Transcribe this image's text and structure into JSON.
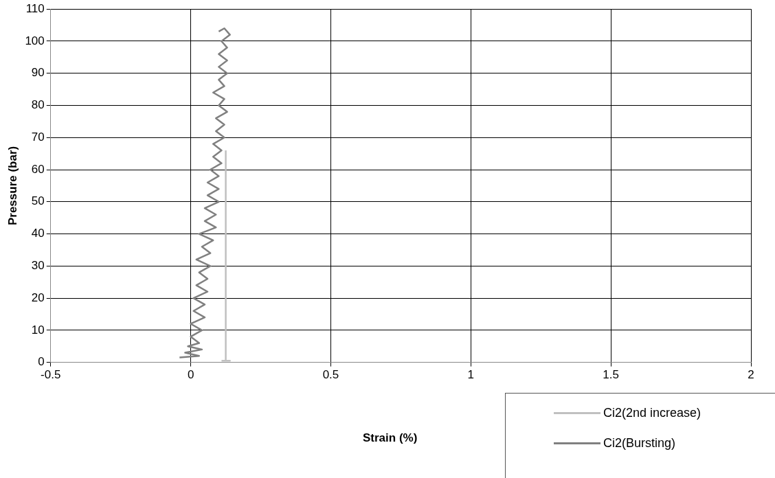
{
  "chart_data": {
    "type": "line",
    "xlabel": "Strain (%)",
    "ylabel": "Pressure (bar)",
    "xlim": [
      -0.5,
      2
    ],
    "xticks": [
      -0.5,
      0,
      0.5,
      1,
      1.5,
      2
    ],
    "ylim": [
      0,
      110
    ],
    "yticks": [
      0,
      10,
      20,
      30,
      40,
      50,
      60,
      70,
      80,
      90,
      100,
      110
    ],
    "grid": true,
    "legend": "bottom right",
    "marker": "none",
    "line_style": "solid",
    "series": [
      {
        "name": "Ci2(2nd increase)",
        "color": "#c0c0c0",
        "x": [
          0.11,
          0.14,
          0.125,
          0.125
        ],
        "values": [
          0.5,
          0.5,
          0.5,
          66
        ]
      },
      {
        "name": "Ci2(Bursting)",
        "color": "#808080",
        "x": [
          -0.04,
          0.03,
          -0.02,
          0.04,
          -0.01,
          0.03,
          0.0,
          0.04,
          0.0,
          0.05,
          0.01,
          0.05,
          0.01,
          0.06,
          0.02,
          0.06,
          0.03,
          0.07,
          0.02,
          0.07,
          0.04,
          0.08,
          0.03,
          0.09,
          0.05,
          0.09,
          0.05,
          0.1,
          0.06,
          0.1,
          0.06,
          0.1,
          0.07,
          0.11,
          0.08,
          0.11,
          0.08,
          0.12,
          0.09,
          0.12,
          0.09,
          0.13,
          0.1,
          0.12,
          0.08,
          0.12,
          0.1,
          0.13,
          0.1,
          0.13,
          0.1,
          0.13,
          0.11,
          0.14,
          0.12,
          0.1
        ],
        "values": [
          1.5,
          2,
          3,
          4,
          5,
          6,
          8,
          10,
          12,
          14,
          16,
          18,
          20,
          22,
          24,
          26,
          28,
          30,
          32,
          34,
          36,
          38,
          40,
          42,
          44,
          46,
          48,
          50,
          52,
          54,
          56,
          58,
          60,
          62,
          64,
          66,
          68,
          70,
          72,
          74,
          76,
          78,
          80,
          82,
          84,
          86,
          88,
          90,
          92,
          94,
          96,
          98,
          100,
          102,
          104,
          103
        ]
      }
    ]
  }
}
